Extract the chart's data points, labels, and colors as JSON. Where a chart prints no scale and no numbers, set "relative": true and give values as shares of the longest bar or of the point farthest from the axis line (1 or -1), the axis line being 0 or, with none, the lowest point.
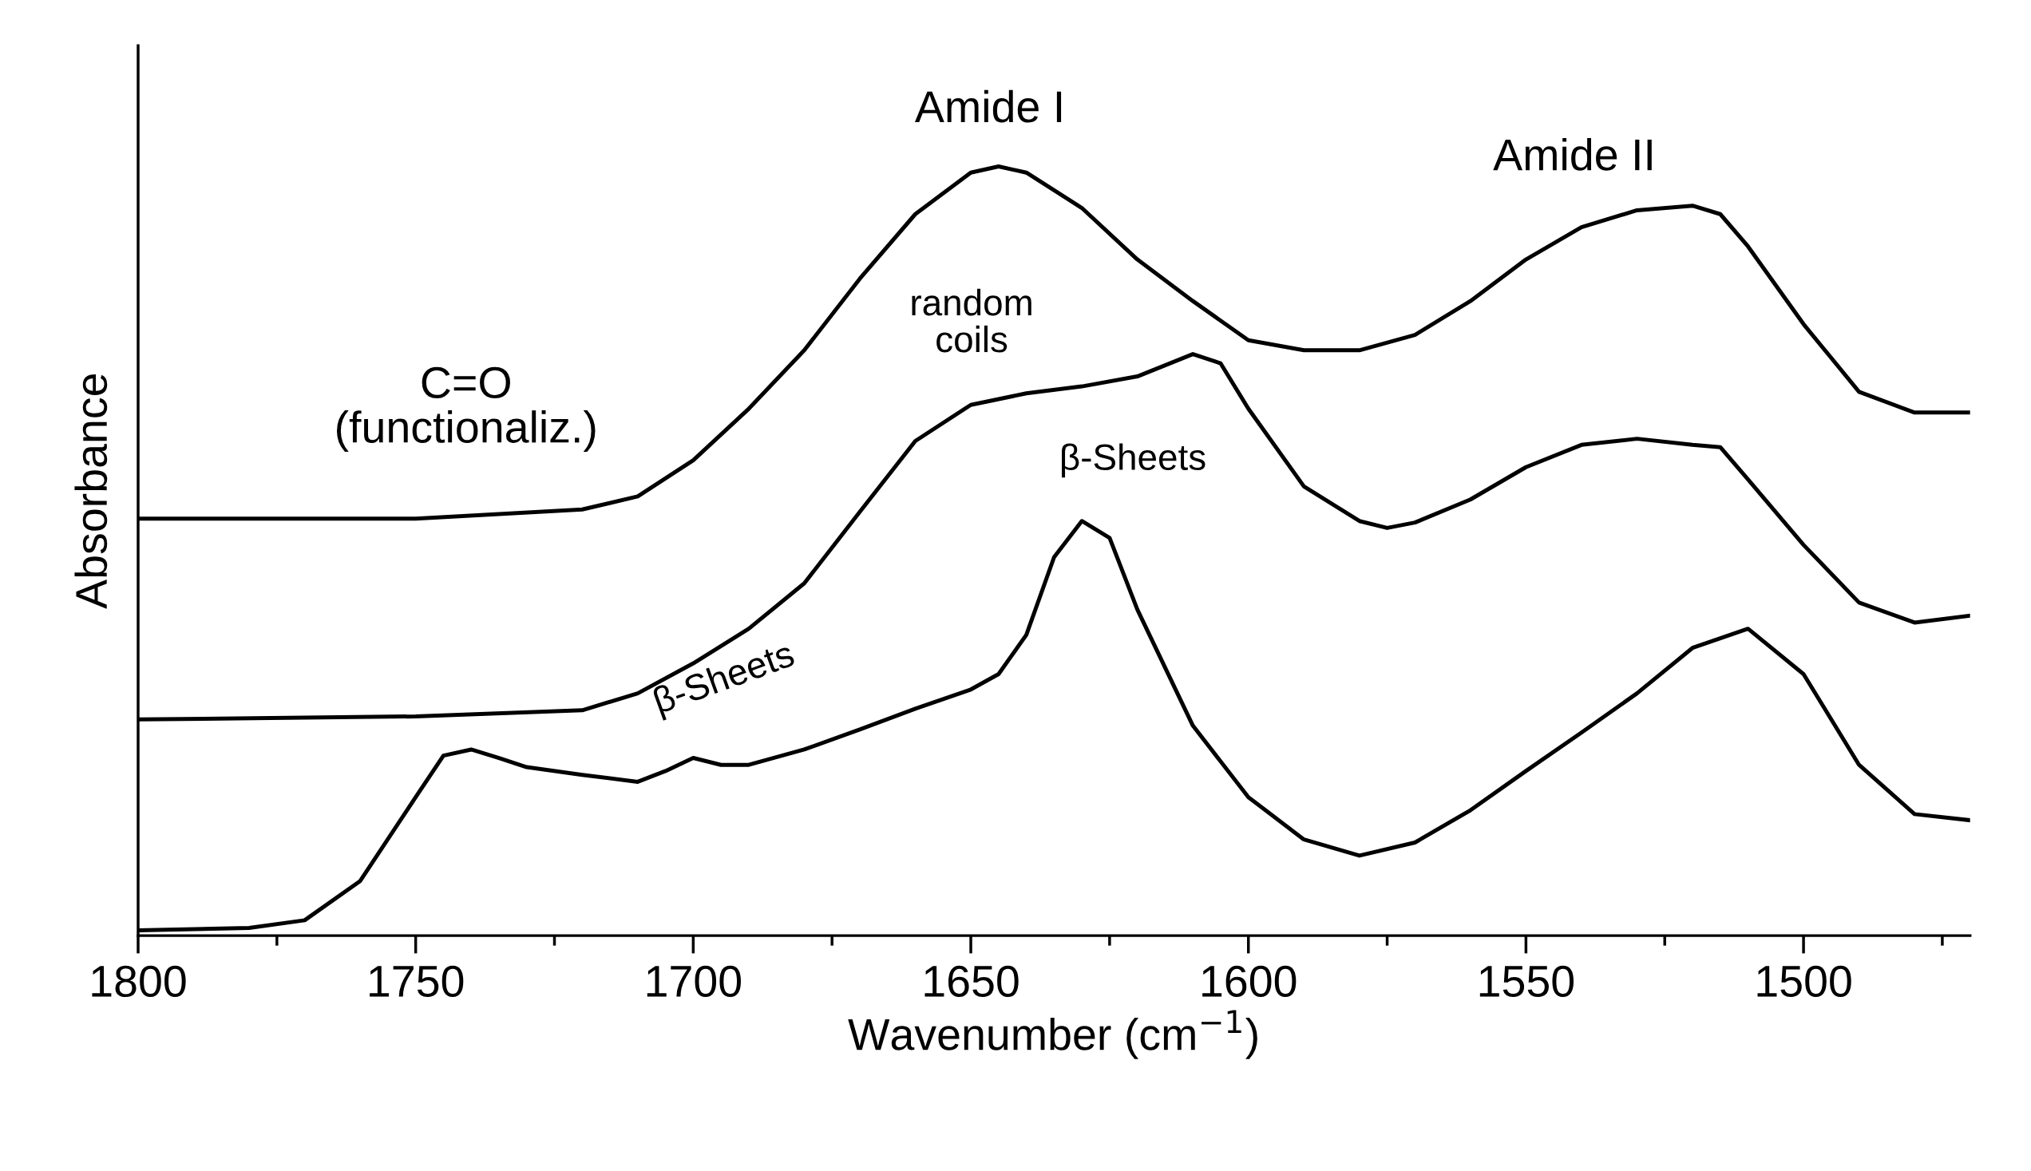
{
  "chart_data": {
    "type": "line",
    "relative": true,
    "xlabel": "Wavenumber (cm$^{−1}$)",
    "ylabel": "Absorbance",
    "xlim": [
      1800,
      1470
    ],
    "xticks": [
      1800,
      {
        "value": 1775,
        "label": null
      },
      1750,
      {
        "value": 1725,
        "label": null
      },
      1700,
      {
        "value": 1675,
        "label": null
      },
      1650,
      {
        "value": 1625,
        "label": null
      },
      1600,
      {
        "value": 1575,
        "label": null
      },
      1550,
      {
        "value": 1525,
        "label": null
      },
      1500,
      {
        "value": 1475,
        "label": null
      }
    ],
    "grid": false,
    "legend": false,
    "line_style": "solid",
    "series": [
      {
        "color": "#000000",
        "x": [
          1800,
          1750,
          1720,
          1710,
          1700,
          1690,
          1680,
          1670,
          1660,
          1650,
          1645,
          1640,
          1630,
          1620,
          1610,
          1600,
          1590,
          1580,
          1570,
          1560,
          1550,
          1540,
          1530,
          1520,
          1515,
          1510,
          1500,
          1490,
          1480,
          1470
        ],
        "values": [
          0.542,
          0.542,
          0.554,
          0.571,
          0.618,
          0.685,
          0.761,
          0.854,
          0.938,
          0.992,
          1.0,
          0.992,
          0.946,
          0.879,
          0.825,
          0.774,
          0.761,
          0.761,
          0.781,
          0.825,
          0.879,
          0.921,
          0.943,
          0.949,
          0.938,
          0.896,
          0.795,
          0.707,
          0.68,
          0.68
        ]
      },
      {
        "color": "#000000",
        "x": [
          1800,
          1750,
          1720,
          1710,
          1700,
          1690,
          1680,
          1670,
          1660,
          1650,
          1640,
          1630,
          1620,
          1610,
          1605,
          1600,
          1590,
          1580,
          1575,
          1570,
          1560,
          1550,
          1540,
          1530,
          1520,
          1515,
          1510,
          1500,
          1490,
          1480,
          1470
        ],
        "values": [
          0.281,
          0.285,
          0.293,
          0.315,
          0.354,
          0.399,
          0.458,
          0.551,
          0.643,
          0.69,
          0.705,
          0.714,
          0.727,
          0.756,
          0.744,
          0.685,
          0.584,
          0.539,
          0.53,
          0.537,
          0.567,
          0.609,
          0.638,
          0.646,
          0.638,
          0.635,
          0.593,
          0.508,
          0.433,
          0.407,
          0.416
        ]
      },
      {
        "color": "#000000",
        "x": [
          1800,
          1780,
          1770,
          1760,
          1750,
          1745,
          1740,
          1735,
          1730,
          1720,
          1710,
          1705,
          1700,
          1695,
          1690,
          1680,
          1670,
          1660,
          1650,
          1645,
          1640,
          1635,
          1630,
          1625,
          1620,
          1610,
          1600,
          1590,
          1580,
          1570,
          1560,
          1550,
          1540,
          1530,
          1520,
          1510,
          1500,
          1490,
          1480,
          1470
        ],
        "values": [
          0.007,
          0.01,
          0.02,
          0.071,
          0.18,
          0.234,
          0.242,
          0.231,
          0.219,
          0.209,
          0.2,
          0.214,
          0.231,
          0.222,
          0.222,
          0.242,
          0.268,
          0.295,
          0.32,
          0.34,
          0.391,
          0.492,
          0.539,
          0.517,
          0.424,
          0.273,
          0.18,
          0.125,
          0.104,
          0.121,
          0.163,
          0.214,
          0.264,
          0.315,
          0.374,
          0.399,
          0.34,
          0.222,
          0.158,
          0.15
        ]
      }
    ],
    "annotations": [
      "Amide I",
      "Amide II",
      "C=O\n(functionaliz.)",
      "random\ncoils",
      "β-Sheets",
      "β-Sheets"
    ]
  }
}
